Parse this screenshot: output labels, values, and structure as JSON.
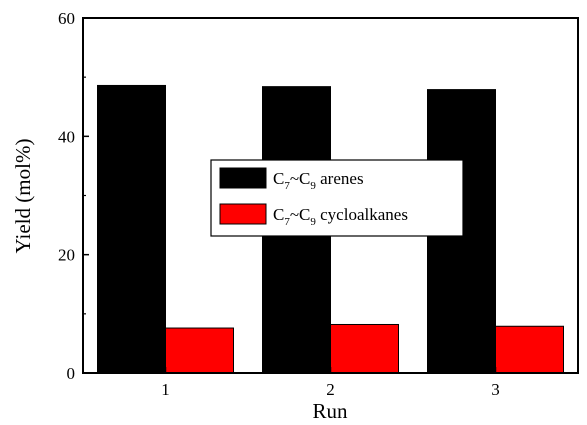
{
  "chart_data": {
    "type": "bar",
    "categories": [
      "1",
      "2",
      "3"
    ],
    "series": [
      {
        "name": "C7~C9 arenes",
        "legend_parts": [
          "C",
          "7",
          "~C",
          "9",
          " arenes"
        ],
        "color": "#000000",
        "values": [
          48.6,
          48.4,
          47.9
        ]
      },
      {
        "name": "C7~C9 cycloalkanes",
        "legend_parts": [
          "C",
          "7",
          "~C",
          "9",
          " cycloalkanes"
        ],
        "color": "#ff0000",
        "values": [
          7.6,
          8.2,
          7.9
        ]
      }
    ],
    "xlabel": "Run",
    "ylabel": "Yield (mol%)",
    "ylim": [
      0,
      60
    ],
    "yticks": [
      0,
      20,
      40,
      60
    ],
    "legend_position": "center",
    "grid": false
  }
}
